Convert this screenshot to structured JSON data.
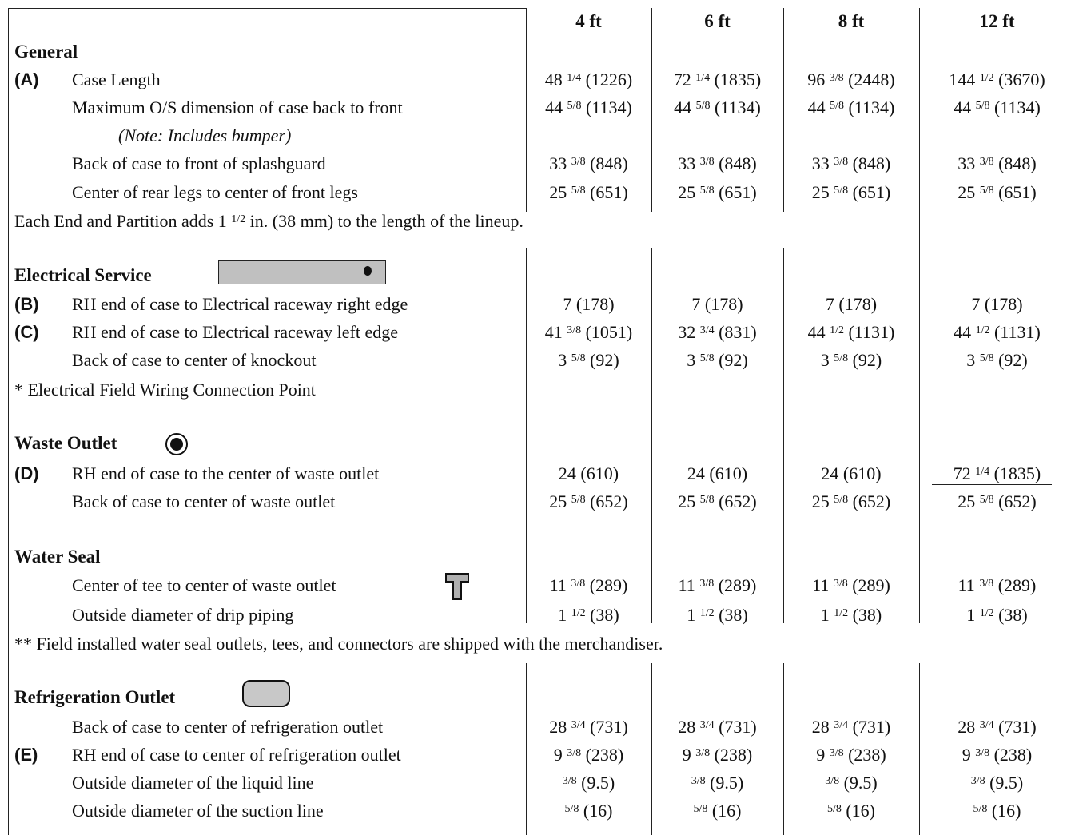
{
  "columns": [
    "4 ft",
    "6 ft",
    "8 ft",
    "12 ft"
  ],
  "sections": {
    "general": {
      "title": "General",
      "rows": [
        {
          "code": "(A)",
          "label": "Case Length",
          "values": [
            [
              "48 ",
              "1/4",
              "(1226)"
            ],
            [
              "72 ",
              "1/4",
              "(1835)"
            ],
            [
              "96 ",
              "3/8",
              "(2448)"
            ],
            [
              "144 ",
              "1/2",
              "(3670)"
            ]
          ]
        },
        {
          "code": "",
          "label": "Maximum O/S dimension of case back to front",
          "values": [
            [
              "44 ",
              "5/8",
              "(1134)"
            ],
            [
              "44 ",
              "5/8",
              "(1134)"
            ],
            [
              "44 ",
              "5/8",
              "(1134)"
            ],
            [
              "44 ",
              "5/8",
              "(1134)"
            ]
          ]
        },
        {
          "code": "",
          "label": "Back of case to front of splashguard",
          "values": [
            [
              "33 ",
              "3/8",
              "(848)"
            ],
            [
              "33 ",
              "3/8",
              "(848)"
            ],
            [
              "33 ",
              "3/8",
              "(848)"
            ],
            [
              "33 ",
              "3/8",
              "(848)"
            ]
          ]
        },
        {
          "code": "",
          "label": "Center of rear legs to center of front legs",
          "values": [
            [
              "25 ",
              "5/8",
              "(651)"
            ],
            [
              "25 ",
              "5/8",
              "(651)"
            ],
            [
              "25 ",
              "5/8",
              "(651)"
            ],
            [
              "25 ",
              "5/8",
              "(651)"
            ]
          ]
        }
      ],
      "note": "(Note: Includes bumper)",
      "footnote_pre": "Each End and Partition adds 1 ",
      "footnote_frac": "1/2",
      "footnote_post": " in. (38 mm) to the length of the lineup."
    },
    "electrical": {
      "title": "Electrical Service",
      "icon": "electrical-raceway-icon",
      "rows": [
        {
          "code": "(B)",
          "label": "RH end of case to Electrical raceway right edge",
          "values": [
            [
              "7 ",
              "",
              "(178)"
            ],
            [
              "7 ",
              "",
              "(178)"
            ],
            [
              "7 ",
              "",
              "(178)"
            ],
            [
              "7 ",
              "",
              "(178)"
            ]
          ]
        },
        {
          "code": "(C)",
          "label": "RH end of case to Electrical raceway left edge",
          "values": [
            [
              "41 ",
              "3/8",
              "(1051)"
            ],
            [
              "32 ",
              "3/4",
              "(831)"
            ],
            [
              "44 ",
              "1/2",
              "(1131)"
            ],
            [
              "44 ",
              "1/2",
              "(1131)"
            ]
          ]
        },
        {
          "code": "",
          "label": "Back of case to center of knockout",
          "values": [
            [
              "3 ",
              "5/8",
              "(92)"
            ],
            [
              "3 ",
              "5/8",
              "(92)"
            ],
            [
              "3 ",
              "5/8",
              "(92)"
            ],
            [
              "3 ",
              "5/8",
              "(92)"
            ]
          ]
        }
      ],
      "footnote": "* Electrical Field Wiring Connection Point"
    },
    "waste": {
      "title": "Waste Outlet",
      "icon": "waste-outlet-icon",
      "rows": [
        {
          "code": "(D)",
          "label": "RH end of case to the center of waste outlet",
          "values": [
            [
              "24 ",
              "",
              "(610)"
            ],
            [
              "24 ",
              "",
              "(610)"
            ],
            [
              "24 ",
              "",
              "(610)"
            ],
            [
              "72 ",
              "1/4",
              "(1835)"
            ]
          ]
        },
        {
          "code": "",
          "label": "Back of case to center of waste outlet",
          "values": [
            [
              "25 ",
              "5/8",
              "(652)"
            ],
            [
              "25 ",
              "5/8",
              "(652)"
            ],
            [
              "25 ",
              "5/8",
              "(652)"
            ],
            [
              "25 ",
              "5/8",
              "(652)"
            ]
          ]
        }
      ]
    },
    "water_seal": {
      "title": "Water Seal",
      "icon": "tee-icon",
      "rows": [
        {
          "code": "",
          "label": "Center of tee to center of waste outlet",
          "values": [
            [
              "11 ",
              "3/8",
              "(289)"
            ],
            [
              "11 ",
              "3/8",
              "(289)"
            ],
            [
              "11 ",
              "3/8",
              "(289)"
            ],
            [
              "11 ",
              "3/8",
              "(289)"
            ]
          ]
        },
        {
          "code": "",
          "label": "Outside diameter of drip piping",
          "values": [
            [
              "1 ",
              "1/2",
              "(38)"
            ],
            [
              "1 ",
              "1/2",
              "(38)"
            ],
            [
              "1 ",
              "1/2",
              "(38)"
            ],
            [
              "1 ",
              "1/2",
              "(38)"
            ]
          ]
        }
      ],
      "footnote": "** Field installed water seal outlets, tees, and connectors are shipped with the merchandiser."
    },
    "refrigeration": {
      "title": "Refrigeration Outlet",
      "icon": "refrigeration-outlet-icon",
      "rows": [
        {
          "code": "",
          "label": "Back of case to center of refrigeration outlet",
          "values": [
            [
              "28 ",
              "3/4",
              "(731)"
            ],
            [
              "28 ",
              "3/4",
              "(731)"
            ],
            [
              "28 ",
              "3/4",
              "(731)"
            ],
            [
              "28 ",
              "3/4",
              "(731)"
            ]
          ]
        },
        {
          "code": "(E)",
          "label": "RH end of case to center of refrigeration outlet",
          "values": [
            [
              "9 ",
              "3/8",
              "(238)"
            ],
            [
              "9 ",
              "3/8",
              "(238)"
            ],
            [
              "9 ",
              "3/8",
              "(238)"
            ],
            [
              "9 ",
              "3/8",
              "(238)"
            ]
          ]
        },
        {
          "code": "",
          "label": "Outside diameter of the liquid line",
          "values": [
            [
              "",
              "3/8",
              "(9.5)"
            ],
            [
              "",
              "3/8",
              "(9.5)"
            ],
            [
              "",
              "3/8",
              "(9.5)"
            ],
            [
              "",
              "3/8",
              "(9.5)"
            ]
          ]
        },
        {
          "code": "",
          "label": "Outside diameter of the suction line",
          "values": [
            [
              "",
              "5/8",
              "(16)"
            ],
            [
              "",
              "5/8",
              "(16)"
            ],
            [
              "",
              "5/8",
              "(16)"
            ],
            [
              "",
              "5/8",
              "(16)"
            ]
          ]
        }
      ]
    }
  }
}
